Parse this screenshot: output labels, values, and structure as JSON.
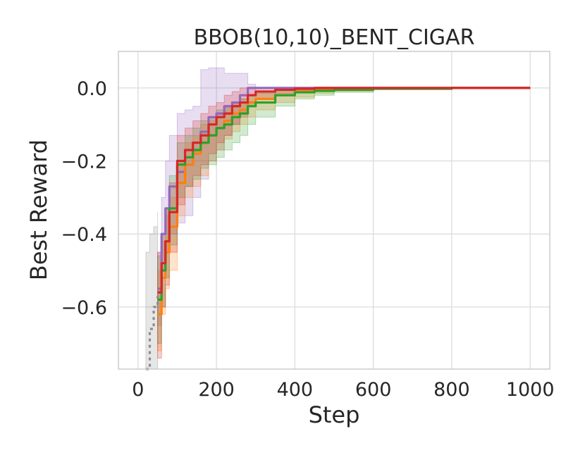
{
  "chart_data": {
    "type": "line",
    "title": "BBOB(10,10)_BENT_CIGAR",
    "xlabel": "Step",
    "ylabel": "Best Reward",
    "xlim": [
      -50,
      1050
    ],
    "ylim": [
      -0.77,
      0.1
    ],
    "xticks": [
      0,
      200,
      400,
      600,
      800,
      1000
    ],
    "yticks": [
      0.0,
      -0.2,
      -0.4,
      -0.6
    ],
    "xtick_labels": [
      "0",
      "200",
      "400",
      "600",
      "800",
      "1000"
    ],
    "ytick_labels": [
      "0.0",
      "−0.2",
      "−0.4",
      "−0.6"
    ],
    "grid": true,
    "series": [
      {
        "color": "#8c8c8c",
        "dashed": true,
        "x": [
          20,
          30,
          40,
          50
        ],
        "y": [
          -0.77,
          -0.66,
          -0.6,
          -0.57
        ],
        "band_upper": [
          -0.45,
          -0.4,
          -0.38,
          -0.34
        ],
        "band_lower": [
          -0.77,
          -0.77,
          -0.77,
          -0.77
        ]
      },
      {
        "color": "#9467bd",
        "x": [
          50,
          60,
          70,
          80,
          100,
          120,
          140,
          160,
          180,
          200,
          220,
          240,
          260,
          280,
          300,
          1000
        ],
        "y": [
          -0.55,
          -0.4,
          -0.33,
          -0.27,
          -0.23,
          -0.21,
          -0.17,
          -0.12,
          -0.08,
          -0.07,
          -0.05,
          -0.04,
          -0.02,
          0.0,
          0.0,
          0.0
        ],
        "band_upper": [
          -0.45,
          -0.3,
          -0.2,
          -0.13,
          -0.07,
          -0.06,
          -0.05,
          0.05,
          0.055,
          0.055,
          0.04,
          0.04,
          0.04,
          0.01,
          0.0,
          0.0
        ],
        "band_lower": [
          -0.65,
          -0.5,
          -0.45,
          -0.4,
          -0.37,
          -0.35,
          -0.3,
          -0.25,
          -0.2,
          -0.17,
          -0.13,
          -0.1,
          -0.07,
          -0.02,
          0.0,
          0.0
        ]
      },
      {
        "color": "#ff7f0e",
        "x": [
          50,
          60,
          70,
          80,
          100,
          120,
          140,
          160,
          180,
          200,
          220,
          240,
          260,
          280,
          300,
          350,
          400,
          450,
          500,
          600,
          800,
          1000
        ],
        "y": [
          -0.62,
          -0.52,
          -0.45,
          -0.38,
          -0.26,
          -0.21,
          -0.18,
          -0.15,
          -0.13,
          -0.11,
          -0.09,
          -0.07,
          -0.06,
          -0.04,
          -0.03,
          -0.02,
          -0.01,
          -0.005,
          -0.003,
          -0.001,
          0.0,
          0.0
        ],
        "band_upper": [
          -0.5,
          -0.42,
          -0.35,
          -0.3,
          -0.2,
          -0.15,
          -0.13,
          -0.1,
          -0.09,
          -0.07,
          -0.05,
          -0.04,
          -0.03,
          -0.02,
          -0.01,
          -0.005,
          0.0,
          0.0,
          0.0,
          0.0,
          0.0,
          0.0
        ],
        "band_lower": [
          -0.72,
          -0.62,
          -0.55,
          -0.5,
          -0.35,
          -0.3,
          -0.27,
          -0.24,
          -0.2,
          -0.17,
          -0.14,
          -0.12,
          -0.1,
          -0.08,
          -0.06,
          -0.04,
          -0.025,
          -0.015,
          -0.01,
          -0.004,
          -0.001,
          0.0
        ]
      },
      {
        "color": "#2ca02c",
        "x": [
          50,
          60,
          70,
          80,
          100,
          120,
          140,
          160,
          180,
          200,
          220,
          240,
          260,
          280,
          300,
          350,
          400,
          450,
          500,
          600,
          800,
          1000
        ],
        "y": [
          -0.58,
          -0.5,
          -0.42,
          -0.33,
          -0.21,
          -0.19,
          -0.17,
          -0.15,
          -0.13,
          -0.11,
          -0.1,
          -0.08,
          -0.07,
          -0.05,
          -0.04,
          -0.02,
          -0.012,
          -0.008,
          -0.005,
          -0.002,
          0.0,
          0.0
        ],
        "band_upper": [
          -0.46,
          -0.4,
          -0.33,
          -0.24,
          -0.15,
          -0.13,
          -0.11,
          -0.09,
          -0.08,
          -0.06,
          -0.05,
          -0.04,
          -0.03,
          -0.02,
          -0.015,
          -0.008,
          -0.004,
          -0.002,
          -0.001,
          0.0,
          0.0,
          0.0
        ],
        "band_lower": [
          -0.7,
          -0.6,
          -0.52,
          -0.43,
          -0.3,
          -0.27,
          -0.25,
          -0.22,
          -0.21,
          -0.19,
          -0.17,
          -0.15,
          -0.13,
          -0.1,
          -0.08,
          -0.05,
          -0.03,
          -0.02,
          -0.012,
          -0.005,
          -0.001,
          0.0
        ]
      },
      {
        "color": "#d62728",
        "x": [
          50,
          60,
          70,
          80,
          100,
          120,
          140,
          160,
          180,
          200,
          220,
          240,
          260,
          280,
          300,
          350,
          400,
          450,
          500,
          600,
          800,
          1000
        ],
        "y": [
          -0.56,
          -0.48,
          -0.42,
          -0.34,
          -0.2,
          -0.17,
          -0.15,
          -0.13,
          -0.1,
          -0.08,
          -0.07,
          -0.05,
          -0.04,
          -0.02,
          -0.01,
          -0.005,
          -0.002,
          0.0,
          0.0,
          0.0,
          0.0,
          0.0
        ],
        "band_upper": [
          -0.45,
          -0.4,
          -0.33,
          -0.26,
          -0.13,
          -0.11,
          -0.09,
          -0.07,
          -0.05,
          -0.04,
          -0.02,
          -0.01,
          0.0,
          0.0,
          0.0,
          0.0,
          0.0,
          0.0,
          0.0,
          0.0,
          0.0,
          0.0
        ],
        "band_lower": [
          -0.74,
          -0.6,
          -0.54,
          -0.45,
          -0.32,
          -0.27,
          -0.24,
          -0.21,
          -0.18,
          -0.15,
          -0.13,
          -0.1,
          -0.08,
          -0.05,
          -0.03,
          -0.015,
          -0.006,
          -0.002,
          0.0,
          0.0,
          0.0,
          0.0
        ]
      }
    ]
  }
}
